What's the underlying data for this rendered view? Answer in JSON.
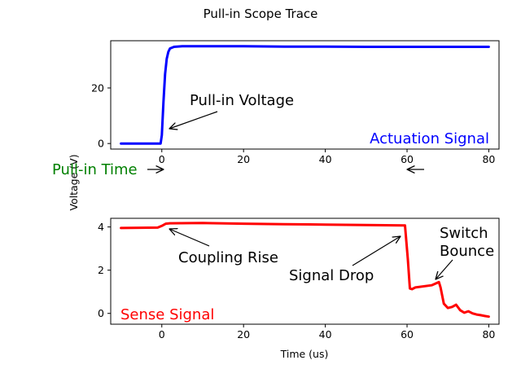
{
  "title": "Pull-in Scope Trace",
  "ylabel": "Voltage (V)",
  "xlabel": "Time (us)",
  "chart_data": [
    {
      "type": "line",
      "panel": "top",
      "xlim": [
        -12.5,
        82.5
      ],
      "ylim": [
        -2,
        37
      ],
      "xticks": [
        0,
        20,
        40,
        60,
        80
      ],
      "yticks": [
        0,
        20
      ],
      "grid": false,
      "series": [
        {
          "name": "Actuation Signal",
          "color": "#0000ff",
          "x": [
            -10,
            -0.3,
            0,
            0.4,
            0.8,
            1.2,
            1.6,
            2,
            3,
            5,
            10,
            20,
            30,
            40,
            50,
            60,
            70,
            80
          ],
          "y": [
            0,
            0,
            3,
            15,
            25,
            30.5,
            33,
            34.2,
            34.8,
            35,
            35,
            35,
            34.9,
            34.9,
            34.8,
            34.8,
            34.8,
            34.8
          ]
        }
      ],
      "annotations": [
        {
          "text": "Pull-in Voltage",
          "xy": [
            0.3,
            4
          ],
          "xytext": [
            6,
            14
          ],
          "arrow": true
        },
        {
          "text": "Actuation Signal",
          "color": "#0000ff",
          "placement": "bottom-right"
        }
      ]
    },
    {
      "type": "line",
      "panel": "bottom",
      "xlim": [
        -12.5,
        82.5
      ],
      "ylim": [
        -0.5,
        4.4
      ],
      "xticks": [
        0,
        20,
        40,
        60,
        80
      ],
      "yticks": [
        0,
        2,
        4
      ],
      "grid": false,
      "series": [
        {
          "name": "Sense Signal",
          "color": "#ff0000",
          "x": [
            -10,
            -1,
            0,
            1,
            2,
            10,
            20,
            30,
            40,
            50,
            59.5,
            60.2,
            60.7,
            61.2,
            62,
            66,
            67.8,
            68.2,
            69,
            70,
            71,
            72,
            73,
            74,
            75,
            76,
            77,
            78,
            79,
            80
          ],
          "y": [
            3.95,
            3.97,
            4.05,
            4.15,
            4.17,
            4.18,
            4.15,
            4.13,
            4.11,
            4.09,
            4.07,
            2.5,
            1.15,
            1.12,
            1.2,
            1.3,
            1.45,
            1.2,
            0.45,
            0.25,
            0.3,
            0.4,
            0.15,
            0.03,
            0.1,
            0.0,
            -0.05,
            -0.08,
            -0.12,
            -0.15
          ]
        }
      ],
      "annotations": [
        {
          "text": "Coupling Rise",
          "xy": [
            0.5,
            3.95
          ],
          "xytext": [
            3,
            2.65
          ],
          "arrow": true
        },
        {
          "text": "Signal Drop",
          "xy": [
            59.7,
            3.65
          ],
          "xytext": [
            31,
            1.8
          ],
          "arrow": true
        },
        {
          "text": "Switch",
          "xytext": [
            69,
            3.7
          ]
        },
        {
          "text": "Bounce",
          "xytext": [
            69,
            2.9
          ]
        },
        {
          "text": "Sense Signal",
          "color": "#ff0000",
          "placement": "bottom-left"
        }
      ]
    }
  ],
  "figure_annotations": [
    {
      "text": "Pull-in Time",
      "color": "#008000"
    }
  ]
}
